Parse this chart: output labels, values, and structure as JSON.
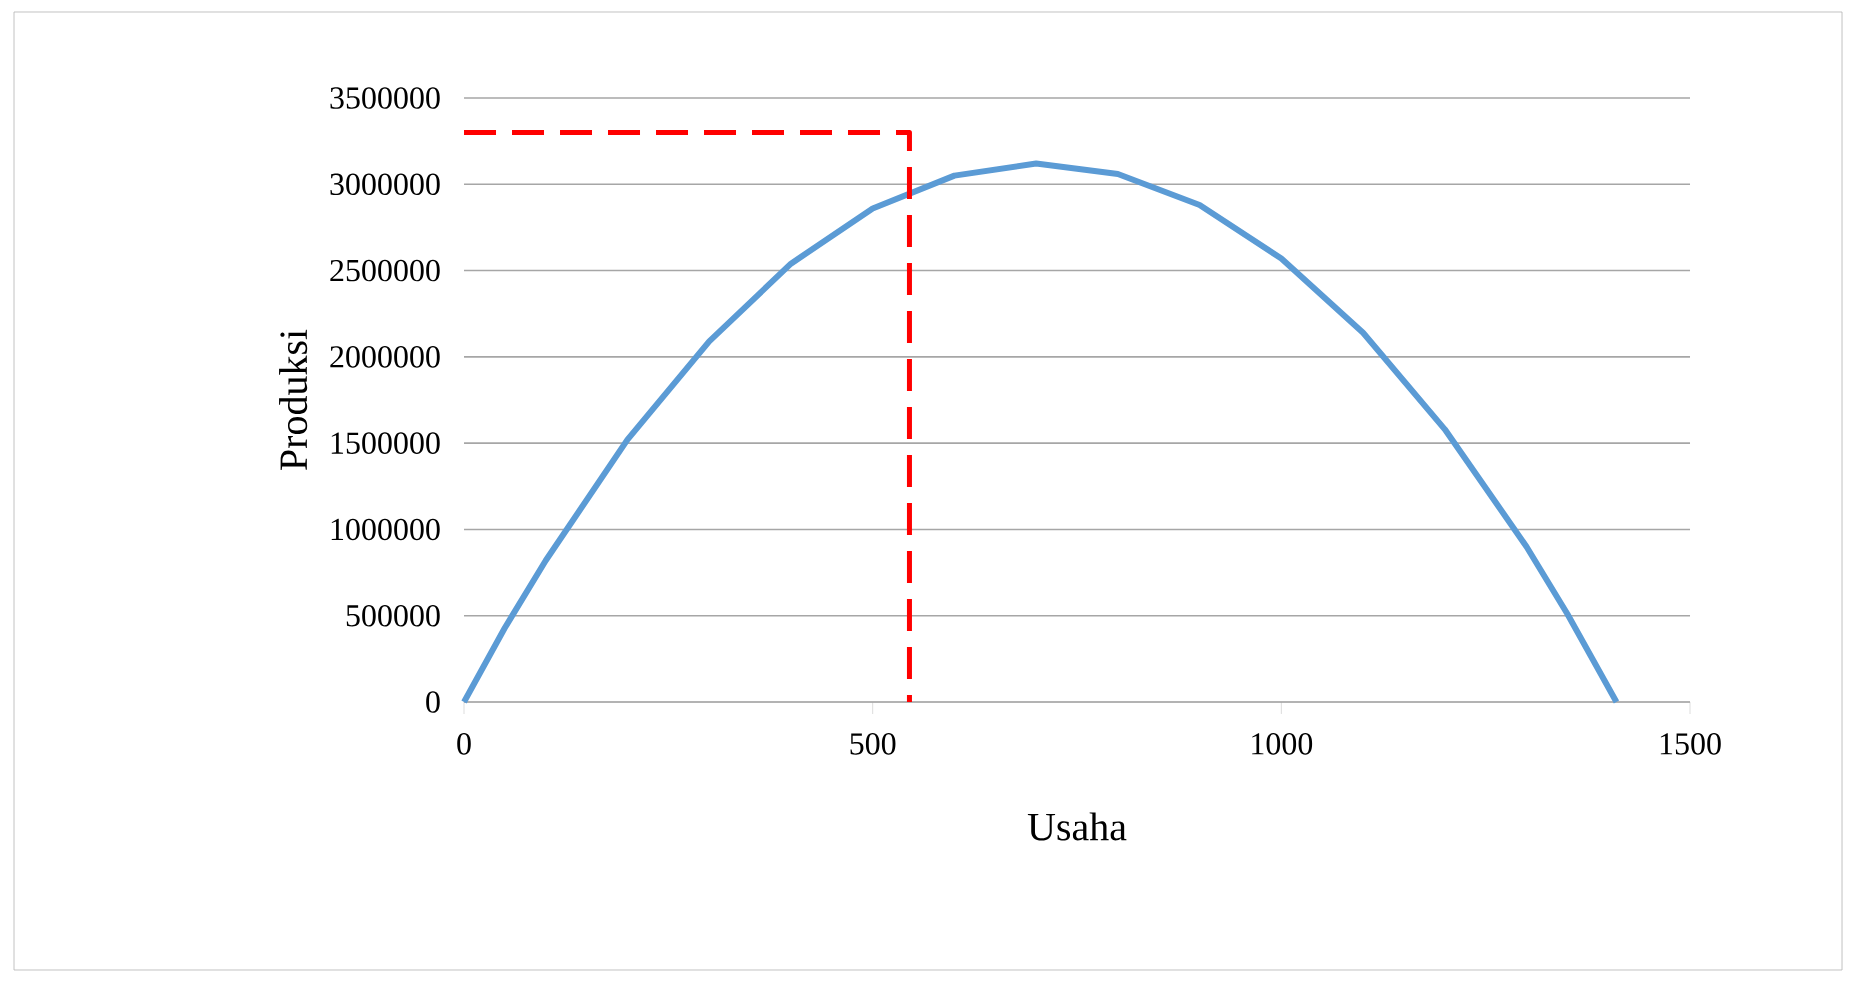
{
  "chart_data": {
    "type": "line",
    "xlabel": "Usaha",
    "ylabel": "Produksi",
    "xlim": [
      0,
      1500
    ],
    "ylim": [
      0,
      3500000
    ],
    "xticks": [
      0,
      500,
      1000,
      1500
    ],
    "yticks": [
      0,
      500000,
      1000000,
      1500000,
      2000000,
      2500000,
      3000000,
      3500000
    ],
    "grid": "y",
    "marker": "none",
    "series": [
      {
        "color": "#5b9bd5",
        "line_style": "solid",
        "x": [
          0,
          50,
          100,
          200,
          300,
          400,
          500,
          600,
          700,
          800,
          900,
          1000,
          1100,
          1200,
          1300,
          1350,
          1410
        ],
        "values": [
          0,
          430000,
          820000,
          1520000,
          2090000,
          2540000,
          2860000,
          3050000,
          3120000,
          3060000,
          2880000,
          2570000,
          2140000,
          1580000,
          900000,
          510000,
          0
        ]
      },
      {
        "color": "#ff0000",
        "line_style": "dashed",
        "x": [
          0,
          545,
          545
        ],
        "values": [
          3300000,
          3300000,
          0
        ]
      }
    ]
  }
}
